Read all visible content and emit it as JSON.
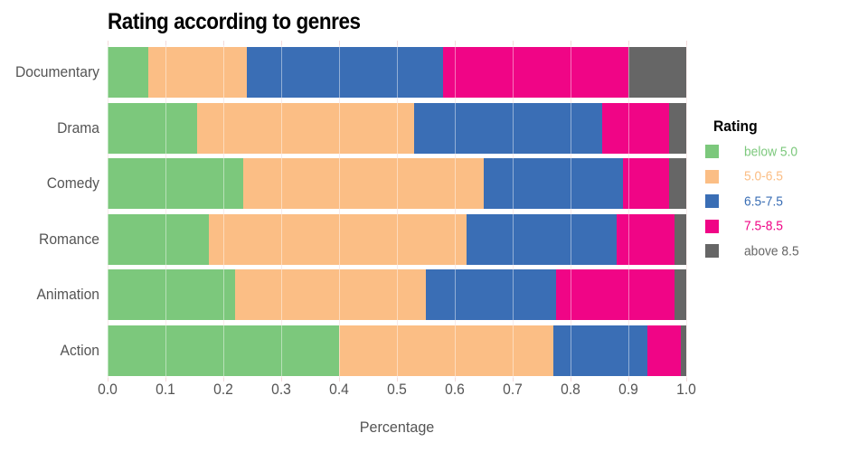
{
  "title": "Rating according to genres",
  "x_axis_label": "Percentage",
  "legend": {
    "title": "Rating",
    "entries": [
      "below 5.0",
      "5.0-6.5",
      "6.5-7.5",
      "7.5-8.5",
      "above 8.5"
    ]
  },
  "colors": {
    "green": "#7CC87C",
    "orange": "#FBBE85",
    "blue": "#3A6EB5",
    "pink": "#F00586",
    "gray": "#666666",
    "axis_text": "#555555",
    "gridline": "#F3DADA",
    "title_text": "#000000"
  },
  "chart_data": {
    "type": "bar",
    "orientation": "horizontal",
    "stacked": true,
    "title": "Rating according to genres",
    "xlabel": "Percentage",
    "ylabel": "",
    "xlim": [
      0.0,
      1.0
    ],
    "x_ticks": [
      "0.0",
      "0.1",
      "0.2",
      "0.3",
      "0.4",
      "0.5",
      "0.6",
      "0.7",
      "0.8",
      "0.9",
      "1.0"
    ],
    "grid": true,
    "legend_title": "Rating",
    "legend_position": "right",
    "categories": [
      "Documentary",
      "Drama",
      "Comedy",
      "Romance",
      "Animation",
      "Action"
    ],
    "series": [
      {
        "name": "below 5.0",
        "color": "#7CC87C",
        "values": [
          0.07,
          0.155,
          0.235,
          0.175,
          0.22,
          0.4
        ]
      },
      {
        "name": "5.0-6.5",
        "color": "#FBBE85",
        "values": [
          0.17,
          0.375,
          0.415,
          0.445,
          0.33,
          0.37
        ]
      },
      {
        "name": "6.5-7.5",
        "color": "#3A6EB5",
        "values": [
          0.34,
          0.325,
          0.24,
          0.26,
          0.225,
          0.163
        ]
      },
      {
        "name": "7.5-8.5",
        "color": "#F00586",
        "values": [
          0.32,
          0.115,
          0.08,
          0.1,
          0.205,
          0.057
        ]
      },
      {
        "name": "above 8.5",
        "color": "#666666",
        "values": [
          0.1,
          0.03,
          0.03,
          0.02,
          0.02,
          0.01
        ]
      }
    ]
  }
}
